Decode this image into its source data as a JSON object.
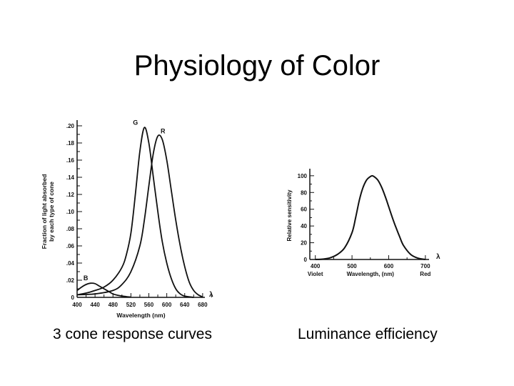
{
  "slide": {
    "title": "Physiology of Color",
    "caption_left": "3 cone response curves",
    "caption_right": "Luminance efficiency"
  },
  "chart_data": [
    {
      "type": "line",
      "xlabel": "Wavelength (nm)",
      "ylabel_lines": [
        "Fraction of light absorbed",
        "by each type of cone"
      ],
      "axis_symbol": "λ",
      "x_ticks": [
        400,
        440,
        480,
        520,
        560,
        600,
        640,
        680
      ],
      "y_ticks": [
        0,
        0.02,
        0.04,
        0.06,
        0.08,
        0.1,
        0.12,
        0.14,
        0.16,
        0.18,
        0.2
      ],
      "y_tick_labels": [
        "0",
        ".02",
        ".04",
        ".06",
        ".08",
        ".10",
        ".12",
        ".14",
        ".16",
        ".18",
        ".20"
      ],
      "xlim": [
        400,
        685
      ],
      "ylim": [
        0,
        0.2
      ],
      "series": [
        {
          "name": "B",
          "x": [
            400,
            410,
            420,
            430,
            440,
            450,
            460,
            470,
            480,
            490,
            500,
            510,
            520
          ],
          "y": [
            0.008,
            0.012,
            0.015,
            0.0165,
            0.016,
            0.013,
            0.01,
            0.007,
            0.004,
            0.0025,
            0.0015,
            0.0008,
            0.0003
          ]
        },
        {
          "name": "G",
          "x": [
            400,
            420,
            440,
            460,
            480,
            500,
            510,
            520,
            530,
            540,
            550,
            560,
            570,
            580,
            590,
            600,
            610,
            620,
            630,
            640,
            660
          ],
          "y": [
            0.003,
            0.005,
            0.008,
            0.012,
            0.02,
            0.035,
            0.05,
            0.075,
            0.12,
            0.17,
            0.198,
            0.18,
            0.14,
            0.1,
            0.065,
            0.04,
            0.022,
            0.01,
            0.004,
            0.0015,
            0
          ]
        },
        {
          "name": "R",
          "x": [
            400,
            440,
            480,
            500,
            520,
            540,
            550,
            560,
            570,
            580,
            590,
            600,
            610,
            620,
            630,
            640,
            650,
            660,
            670,
            680
          ],
          "y": [
            0.003,
            0.004,
            0.008,
            0.015,
            0.03,
            0.06,
            0.09,
            0.13,
            0.168,
            0.188,
            0.184,
            0.16,
            0.125,
            0.09,
            0.06,
            0.036,
            0.018,
            0.008,
            0.003,
            0.0005
          ]
        }
      ]
    },
    {
      "type": "line",
      "xlabel": "Wavelength, (nm)",
      "ylabel": "Relative sensitivity",
      "axis_symbol": "λ",
      "x_ticks": [
        400,
        500,
        600,
        700
      ],
      "x_extra_labels": {
        "400": "Violet",
        "700": "Red"
      },
      "y_ticks": [
        0,
        20,
        40,
        60,
        80,
        100
      ],
      "xlim": [
        385,
        710
      ],
      "ylim": [
        0,
        105
      ],
      "series": [
        {
          "x": [
            400,
            420,
            440,
            460,
            480,
            500,
            510,
            520,
            530,
            540,
            550,
            555,
            560,
            570,
            580,
            590,
            600,
            610,
            620,
            630,
            640,
            660,
            680,
            700
          ],
          "y": [
            0,
            0.4,
            2,
            6,
            14,
            32,
            50,
            71,
            86,
            95,
            99,
            100,
            99,
            95,
            87,
            76,
            63,
            50,
            38,
            27,
            17,
            6,
            1.5,
            0
          ]
        }
      ]
    }
  ]
}
